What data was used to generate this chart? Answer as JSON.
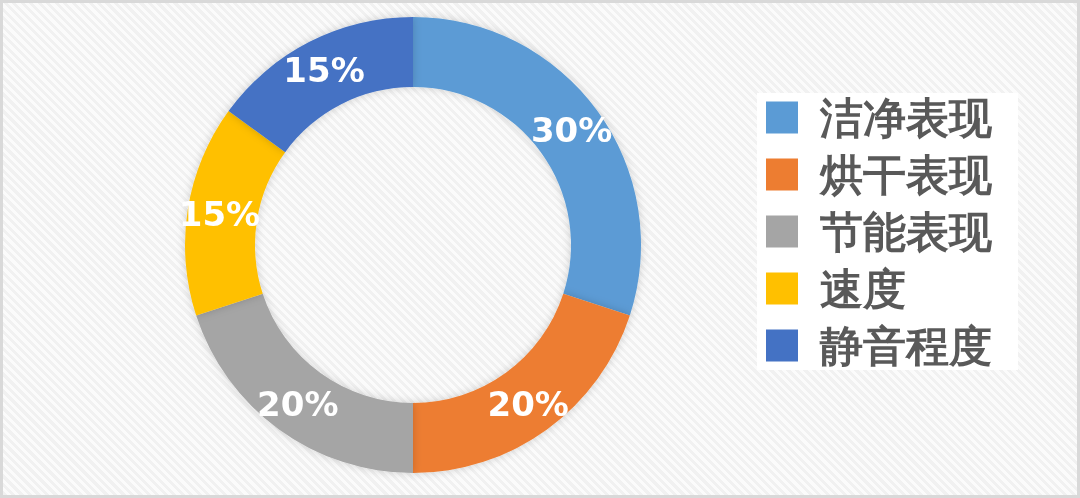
{
  "chart_data": {
    "type": "donut",
    "categories": [
      "洁净表现",
      "烘干表现",
      "节能表现",
      "速度",
      "静音程度"
    ],
    "values": [
      30,
      20,
      20,
      15,
      15
    ],
    "colors": [
      "#5b9bd5",
      "#ed7d31",
      "#a5a5a5",
      "#ffc000",
      "#4472c4"
    ],
    "value_labels": [
      "30%",
      "20%",
      "20%",
      "15%",
      "15%"
    ],
    "legend": "right"
  }
}
